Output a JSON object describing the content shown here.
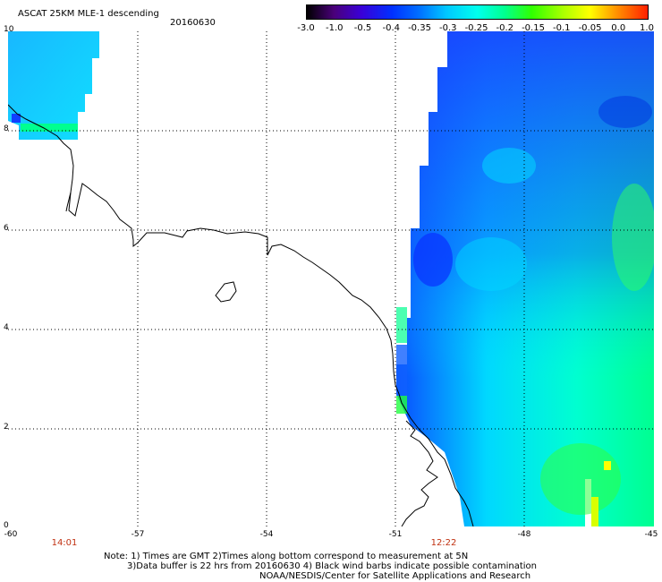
{
  "header": {
    "title": "ASCAT 25KM MLE-1 descending",
    "date": "20160630"
  },
  "colorbar": {
    "labels": [
      "-3.0",
      "-1.0",
      "-0.5",
      "-0.4",
      "-0.35",
      "-0.3",
      "-0.25",
      "-0.2",
      "-0.15",
      "-0.1",
      "-0.05",
      "0.0",
      "1.0"
    ],
    "colors": [
      "#000000",
      "#4a007a",
      "#3a00d8",
      "#0030ff",
      "#0070ff",
      "#00c8ff",
      "#00ffee",
      "#00ff90",
      "#30ff00",
      "#a8ff00",
      "#ffff00",
      "#ff9000",
      "#ff2000"
    ]
  },
  "map": {
    "lat_labels": [
      "10",
      "8",
      "6",
      "4",
      "2",
      "0"
    ],
    "lon_labels": [
      "-60",
      "-57",
      "-54",
      "-51",
      "-48",
      "-45"
    ],
    "times": [
      "14:01",
      "12:22"
    ]
  },
  "notes": {
    "line1": "Note: 1) Times are GMT 2)Times along bottom correspond to measurement at 5N",
    "line2": "3)Data buffer is 22 hrs from 20160630 4) Black wind barbs indicate possible contamination",
    "line3": "NOAA/NESDIS/Center for Satellite Applications and Research"
  }
}
